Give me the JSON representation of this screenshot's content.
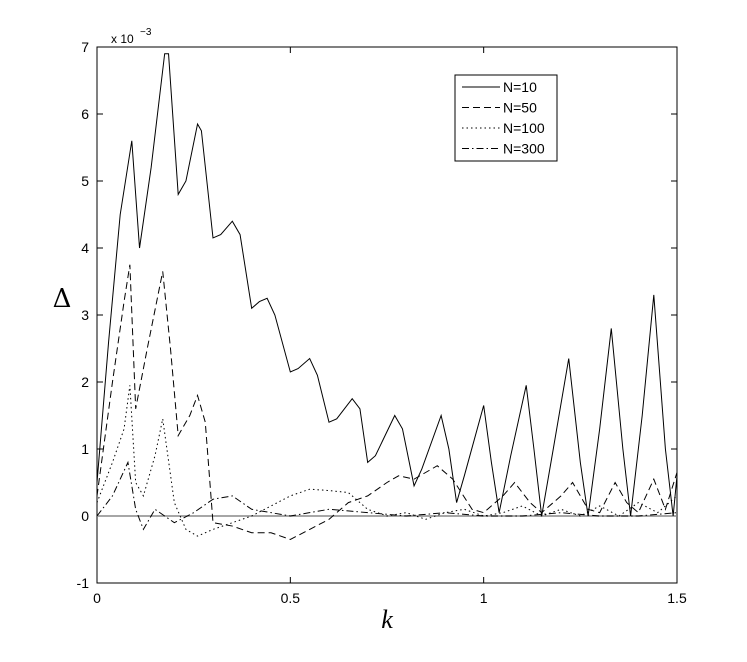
{
  "chart_data": {
    "type": "line",
    "xlabel": "k",
    "ylabel": "Δ",
    "y_multiplier": "x 10",
    "y_multiplier_exponent": "−3",
    "xlim": [
      0,
      1.5
    ],
    "ylim": [
      -1,
      7
    ],
    "xticks": [
      0,
      0.5,
      1,
      1.5
    ],
    "yticks": [
      -1,
      0,
      1,
      2,
      3,
      4,
      5,
      6,
      7
    ],
    "hline": 0,
    "legend": "upper-right",
    "series": [
      {
        "name": "N=10",
        "color": "#000000",
        "dash": "none",
        "x": [
          0,
          0.03,
          0.06,
          0.09,
          0.11,
          0.14,
          0.175,
          0.185,
          0.21,
          0.23,
          0.26,
          0.27,
          0.3,
          0.32,
          0.35,
          0.37,
          0.4,
          0.42,
          0.44,
          0.46,
          0.5,
          0.52,
          0.55,
          0.57,
          0.6,
          0.62,
          0.66,
          0.68,
          0.7,
          0.72,
          0.77,
          0.79,
          0.82,
          0.84,
          0.89,
          0.91,
          0.93,
          0.95,
          1.0,
          1.02,
          1.04,
          1.07,
          1.11,
          1.13,
          1.15,
          1.18,
          1.22,
          1.25,
          1.27,
          1.3,
          1.33,
          1.36,
          1.38,
          1.41,
          1.44,
          1.47,
          1.49,
          1.5
        ],
        "values": [
          0.5,
          2.6,
          4.5,
          5.6,
          4.0,
          5.2,
          6.9,
          6.9,
          4.8,
          5.0,
          5.85,
          5.75,
          4.15,
          4.2,
          4.4,
          4.2,
          3.1,
          3.2,
          3.25,
          3.0,
          2.15,
          2.2,
          2.35,
          2.1,
          1.4,
          1.45,
          1.75,
          1.6,
          0.8,
          0.9,
          1.5,
          1.3,
          0.45,
          0.7,
          1.5,
          1.0,
          0.2,
          0.6,
          1.65,
          0.8,
          0.05,
          0.9,
          1.95,
          1.0,
          0.0,
          1.0,
          2.35,
          0.8,
          0.0,
          1.3,
          2.8,
          1.0,
          0.0,
          1.5,
          3.3,
          1.0,
          0.0,
          0.6
        ]
      },
      {
        "name": "N=50",
        "color": "#000000",
        "dash": "7 4",
        "x": [
          0,
          0.04,
          0.07,
          0.085,
          0.1,
          0.13,
          0.17,
          0.19,
          0.21,
          0.24,
          0.26,
          0.28,
          0.3,
          0.35,
          0.4,
          0.45,
          0.5,
          0.55,
          0.6,
          0.65,
          0.7,
          0.75,
          0.78,
          0.82,
          0.88,
          0.92,
          0.97,
          1.0,
          1.05,
          1.08,
          1.12,
          1.15,
          1.2,
          1.23,
          1.27,
          1.3,
          1.34,
          1.37,
          1.4,
          1.44,
          1.47,
          1.5
        ],
        "values": [
          0.3,
          2.0,
          3.2,
          3.75,
          1.6,
          2.5,
          3.65,
          2.5,
          1.2,
          1.5,
          1.8,
          1.4,
          -0.1,
          -0.15,
          -0.25,
          -0.25,
          -0.35,
          -0.2,
          -0.05,
          0.2,
          0.3,
          0.5,
          0.6,
          0.55,
          0.75,
          0.55,
          0.1,
          0.05,
          0.3,
          0.5,
          0.2,
          0.05,
          0.3,
          0.5,
          0.1,
          0.05,
          0.5,
          0.2,
          0.05,
          0.55,
          0.1,
          0.65
        ]
      },
      {
        "name": "N=100",
        "color": "#000000",
        "dash": "1.5 3",
        "x": [
          0,
          0.04,
          0.07,
          0.085,
          0.1,
          0.12,
          0.15,
          0.17,
          0.2,
          0.23,
          0.26,
          0.3,
          0.35,
          0.4,
          0.45,
          0.5,
          0.55,
          0.6,
          0.65,
          0.7,
          0.75,
          0.8,
          0.85,
          0.9,
          0.95,
          1.0,
          1.05,
          1.1,
          1.15,
          1.2,
          1.25,
          1.3,
          1.35,
          1.4,
          1.45,
          1.5
        ],
        "values": [
          0.2,
          0.8,
          1.3,
          1.95,
          0.5,
          0.3,
          0.9,
          1.45,
          0.2,
          -0.2,
          -0.3,
          -0.2,
          -0.1,
          0.0,
          0.15,
          0.3,
          0.4,
          0.38,
          0.35,
          0.1,
          0.0,
          0.05,
          -0.05,
          0.05,
          0.1,
          0.0,
          0.05,
          0.15,
          0.0,
          0.1,
          0.0,
          0.15,
          0.0,
          0.2,
          0.05,
          0.3
        ]
      },
      {
        "name": "N=300",
        "color": "#000000",
        "dash": "7 3 1.5 3",
        "x": [
          0,
          0.04,
          0.08,
          0.1,
          0.12,
          0.15,
          0.2,
          0.25,
          0.3,
          0.35,
          0.4,
          0.5,
          0.6,
          0.7,
          0.8,
          0.9,
          1.0,
          1.1,
          1.2,
          1.3,
          1.4,
          1.5
        ],
        "values": [
          0.0,
          0.3,
          0.8,
          0.1,
          -0.2,
          0.1,
          -0.1,
          0.05,
          0.25,
          0.3,
          0.1,
          0.0,
          0.1,
          0.05,
          0.0,
          0.05,
          0.0,
          0.0,
          0.05,
          0.0,
          0.0,
          0.05
        ]
      }
    ]
  }
}
